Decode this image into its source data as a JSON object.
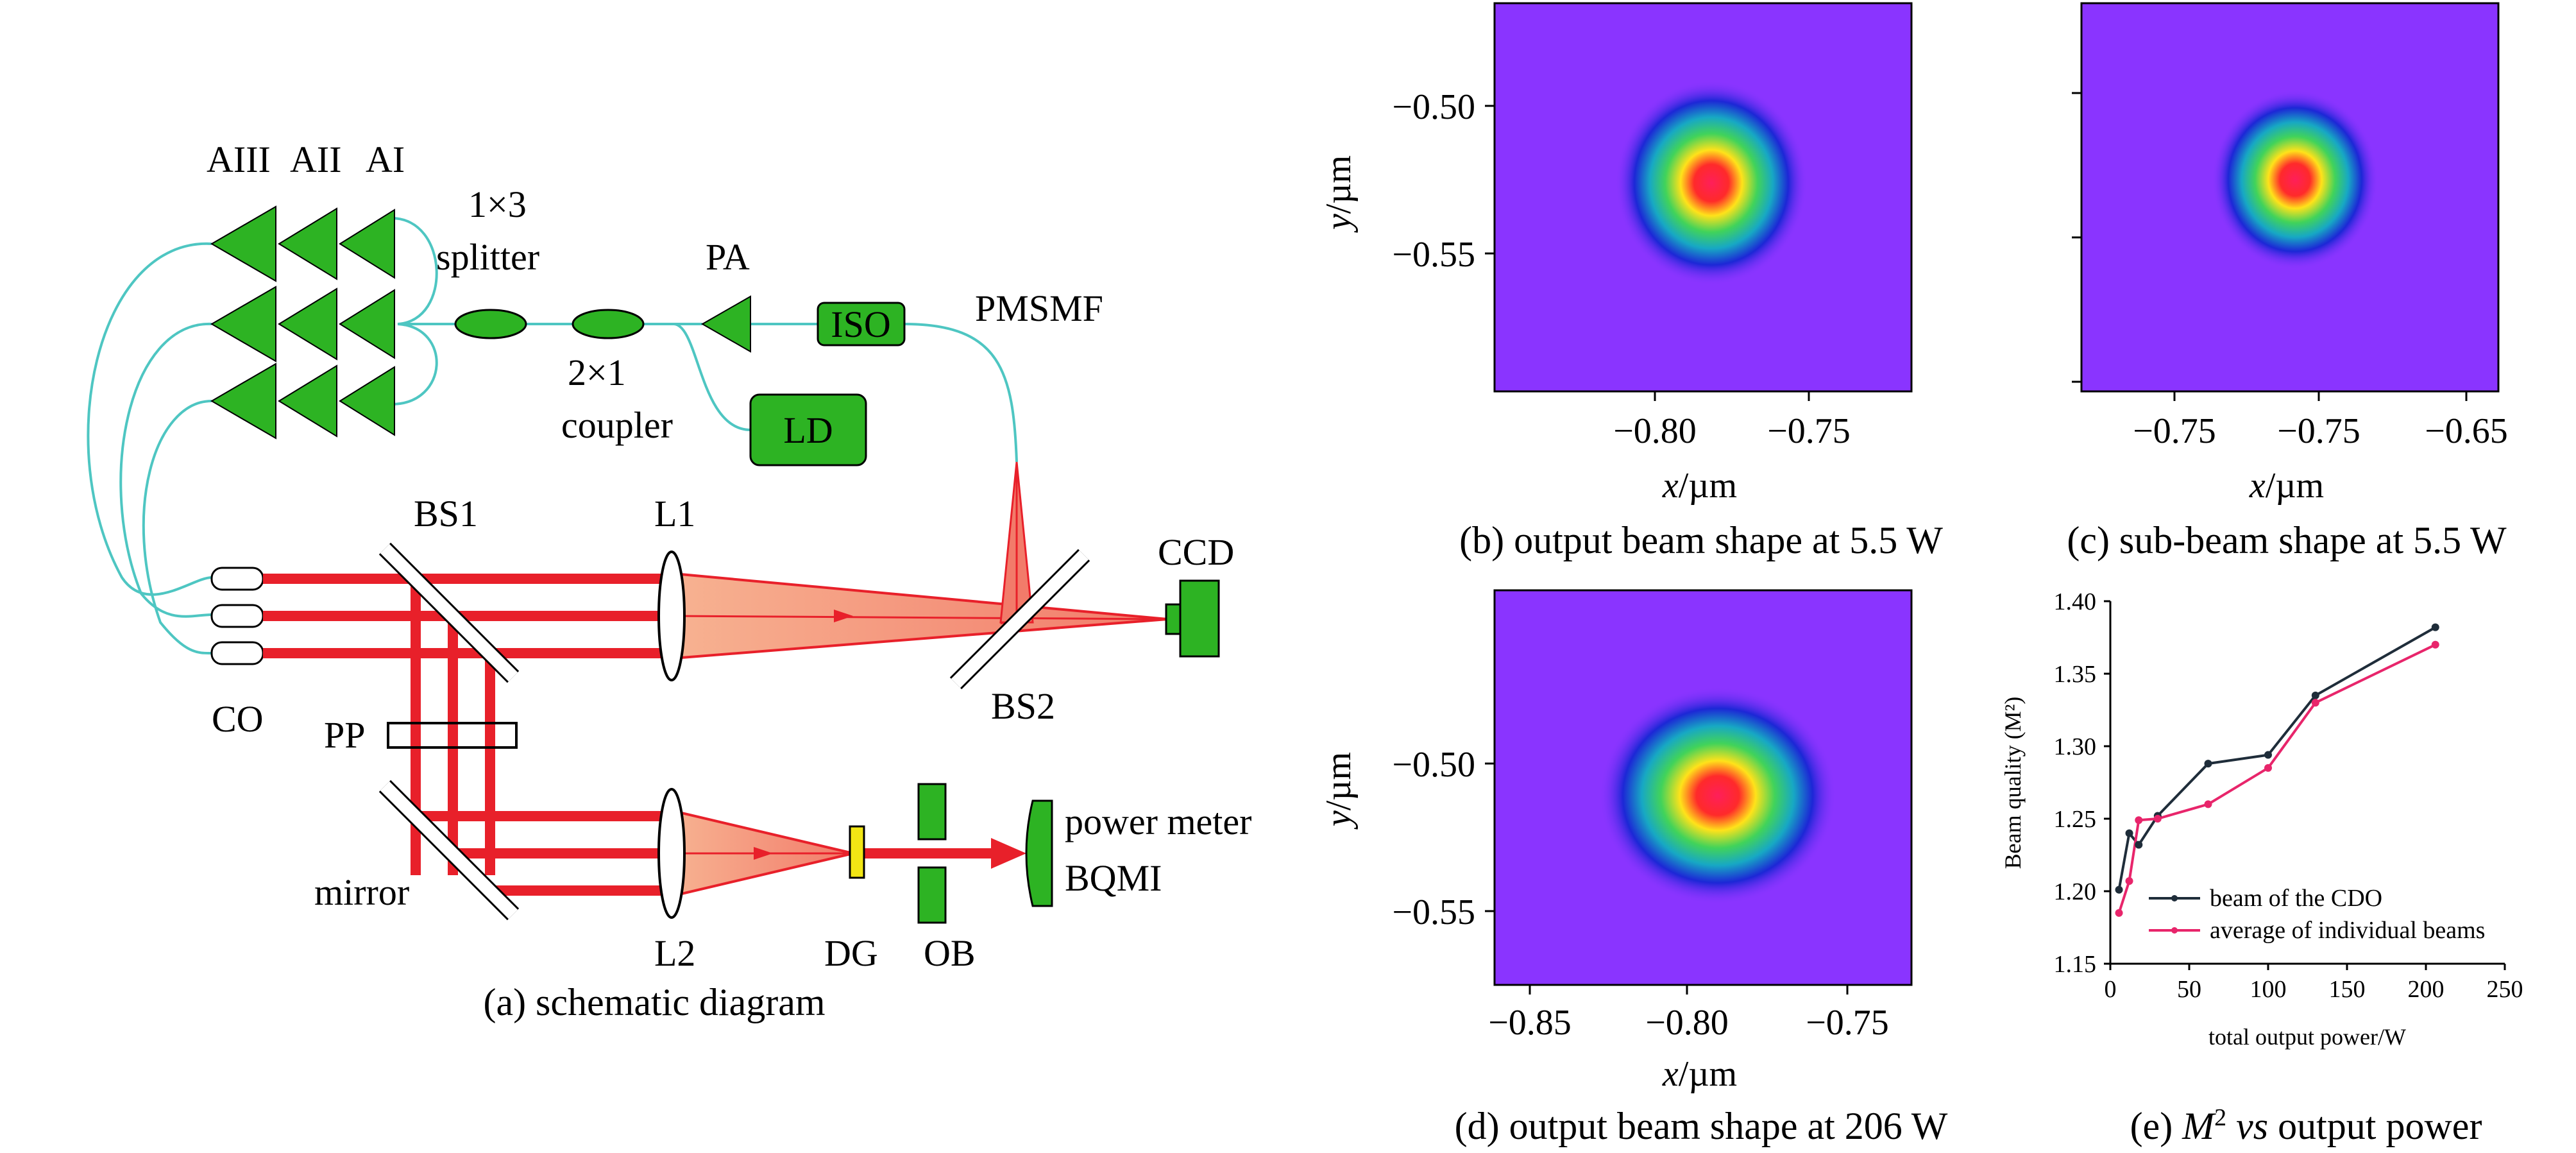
{
  "diagram": {
    "labels": {
      "amps": [
        "AIII",
        "AII",
        "AI"
      ],
      "splitter": [
        "1×3",
        "splitter"
      ],
      "coupler": [
        "2×1",
        "coupler"
      ],
      "pa": "PA",
      "iso": "ISO",
      "ld": "LD",
      "pmsmf": "PMSMF",
      "bs1": "BS1",
      "l1": "L1",
      "ccd": "CCD",
      "bs2": "BS2",
      "co": "CO",
      "pp": "PP",
      "mirror": "mirror",
      "l2": "L2",
      "dg": "DG",
      "ob": "OB",
      "power_meter": "power meter",
      "bqmi": "BQMI"
    },
    "caption": "(a) schematic diagram"
  },
  "beam_panels": [
    {
      "caption": "(b) output beam shape at 5.5 W",
      "xlabel_var": "x",
      "xlabel_unit": "/µm",
      "ylabel_var": "y",
      "ylabel_unit": "/µm",
      "xticks": [
        "−0.80",
        "−0.75"
      ],
      "yticks": [
        "−0.50",
        "−0.55"
      ]
    },
    {
      "caption": "(c) sub-beam shape at 5.5 W",
      "xlabel_var": "x",
      "xlabel_unit": "/µm",
      "xticks": [
        "−0.75",
        "−0.75",
        "−0.65"
      ]
    },
    {
      "caption": "(d) output beam shape at 206 W",
      "xlabel_var": "x",
      "xlabel_unit": "/µm",
      "ylabel_var": "y",
      "ylabel_unit": "/µm",
      "xticks": [
        "−0.85",
        "−0.80",
        "−0.75"
      ],
      "yticks": [
        "−0.50",
        "−0.55"
      ]
    }
  ],
  "chart_caption": {
    "prefix": "(e) ",
    "m": "M",
    "sup": "2",
    "vs": " vs",
    "rest": " output power"
  },
  "chart_data": {
    "type": "line",
    "xlabel": "total output power/W",
    "ylabel": "Beam quality (M²)",
    "xlim": [
      0,
      250
    ],
    "ylim": [
      1.15,
      1.4
    ],
    "xticks": [
      0,
      50,
      100,
      150,
      200,
      250
    ],
    "yticks": [
      1.15,
      1.2,
      1.25,
      1.3,
      1.35,
      1.4
    ],
    "legend_position": "lower-right",
    "series": [
      {
        "name": "beam of the CDO",
        "color": "#1f2d3a",
        "points": [
          [
            5.5,
            1.201
          ],
          [
            12,
            1.24
          ],
          [
            18,
            1.232
          ],
          [
            30,
            1.252
          ],
          [
            62,
            1.288
          ],
          [
            100,
            1.294
          ],
          [
            130,
            1.335
          ],
          [
            206,
            1.382
          ]
        ]
      },
      {
        "name": "average of individual beams",
        "color": "#e8256b",
        "points": [
          [
            5.5,
            1.185
          ],
          [
            12,
            1.207
          ],
          [
            18,
            1.249
          ],
          [
            30,
            1.25
          ],
          [
            62,
            1.26
          ],
          [
            100,
            1.285
          ],
          [
            130,
            1.33
          ],
          [
            206,
            1.37
          ]
        ]
      }
    ]
  }
}
